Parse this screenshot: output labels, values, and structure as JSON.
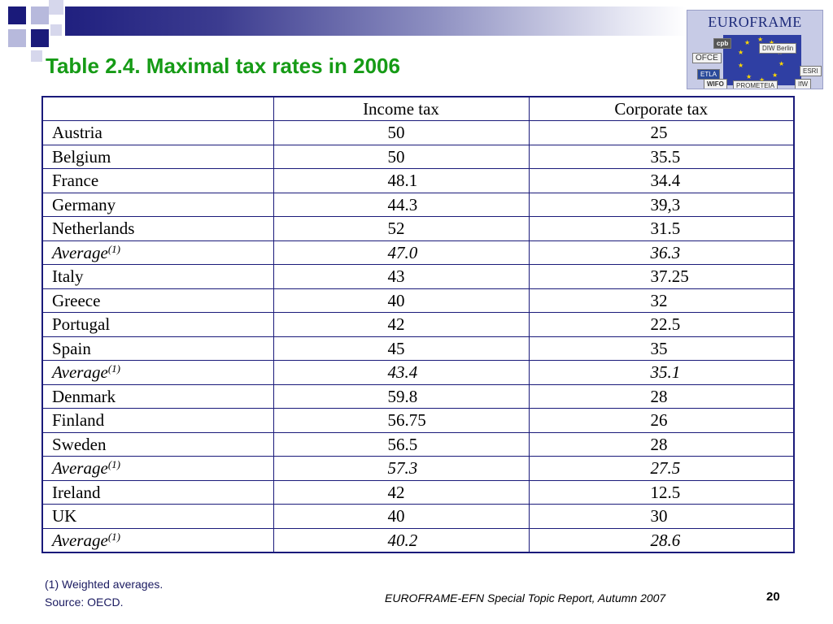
{
  "slide": {
    "title": "Table 2.4. Maximal tax rates in 2006",
    "page_number": "20",
    "footer": "EUROFRAME-EFN Special Topic Report, Autumn 2007"
  },
  "logo": {
    "text": "EUROFRAME",
    "members": [
      "cpb",
      "DIW Berlin",
      "OFCE",
      "ETLA",
      "ESRI",
      "WIFO",
      "PROMETEIA",
      "IfW"
    ]
  },
  "table": {
    "headers": [
      "",
      "Income tax",
      "Corporate tax"
    ],
    "rows": [
      {
        "country": "Austria",
        "income": "50",
        "corporate": "25",
        "average": false
      },
      {
        "country": "Belgium",
        "income": "50",
        "corporate": "35.5",
        "average": false
      },
      {
        "country": "France",
        "income": "48.1",
        "corporate": "34.4",
        "average": false
      },
      {
        "country": "Germany",
        "income": "44.3",
        "corporate": "39,3",
        "average": false
      },
      {
        "country": "Netherlands",
        "income": "52",
        "corporate": "31.5",
        "average": false
      },
      {
        "country": "Average",
        "note": "(1)",
        "income": "47.0",
        "corporate": "36.3",
        "average": true
      },
      {
        "country": "Italy",
        "income": "43",
        "corporate": "37.25",
        "average": false
      },
      {
        "country": "Greece",
        "income": "40",
        "corporate": "32",
        "average": false
      },
      {
        "country": "Portugal",
        "income": "42",
        "corporate": "22.5",
        "average": false
      },
      {
        "country": "Spain",
        "income": "45",
        "corporate": "35",
        "average": false
      },
      {
        "country": "Average",
        "note": "(1)",
        "income": "43.4",
        "corporate": "35.1",
        "average": true
      },
      {
        "country": "Denmark",
        "income": "59.8",
        "corporate": "28",
        "average": false
      },
      {
        "country": "Finland",
        "income": "56.75",
        "corporate": "26",
        "average": false
      },
      {
        "country": "Sweden",
        "income": " 56.5",
        "corporate": "28",
        "average": false
      },
      {
        "country": "Average",
        "note": "(1)",
        "income": "57.3",
        "corporate": "27.5",
        "average": true
      },
      {
        "country": "Ireland",
        "income": "42",
        "corporate": "12.5",
        "average": false
      },
      {
        "country": "UK",
        "income": "40",
        "corporate": "30",
        "average": false
      },
      {
        "country": "Average",
        "note": "(1)",
        "income": "40.2",
        "corporate": "28.6",
        "average": true
      }
    ]
  },
  "notes": {
    "footnote": "(1) Weighted averages.",
    "source": "Source: OECD."
  },
  "colors": {
    "title": "#169b16",
    "accent_navy": "#1a1a7a",
    "table_border": "#1a1a7a"
  }
}
